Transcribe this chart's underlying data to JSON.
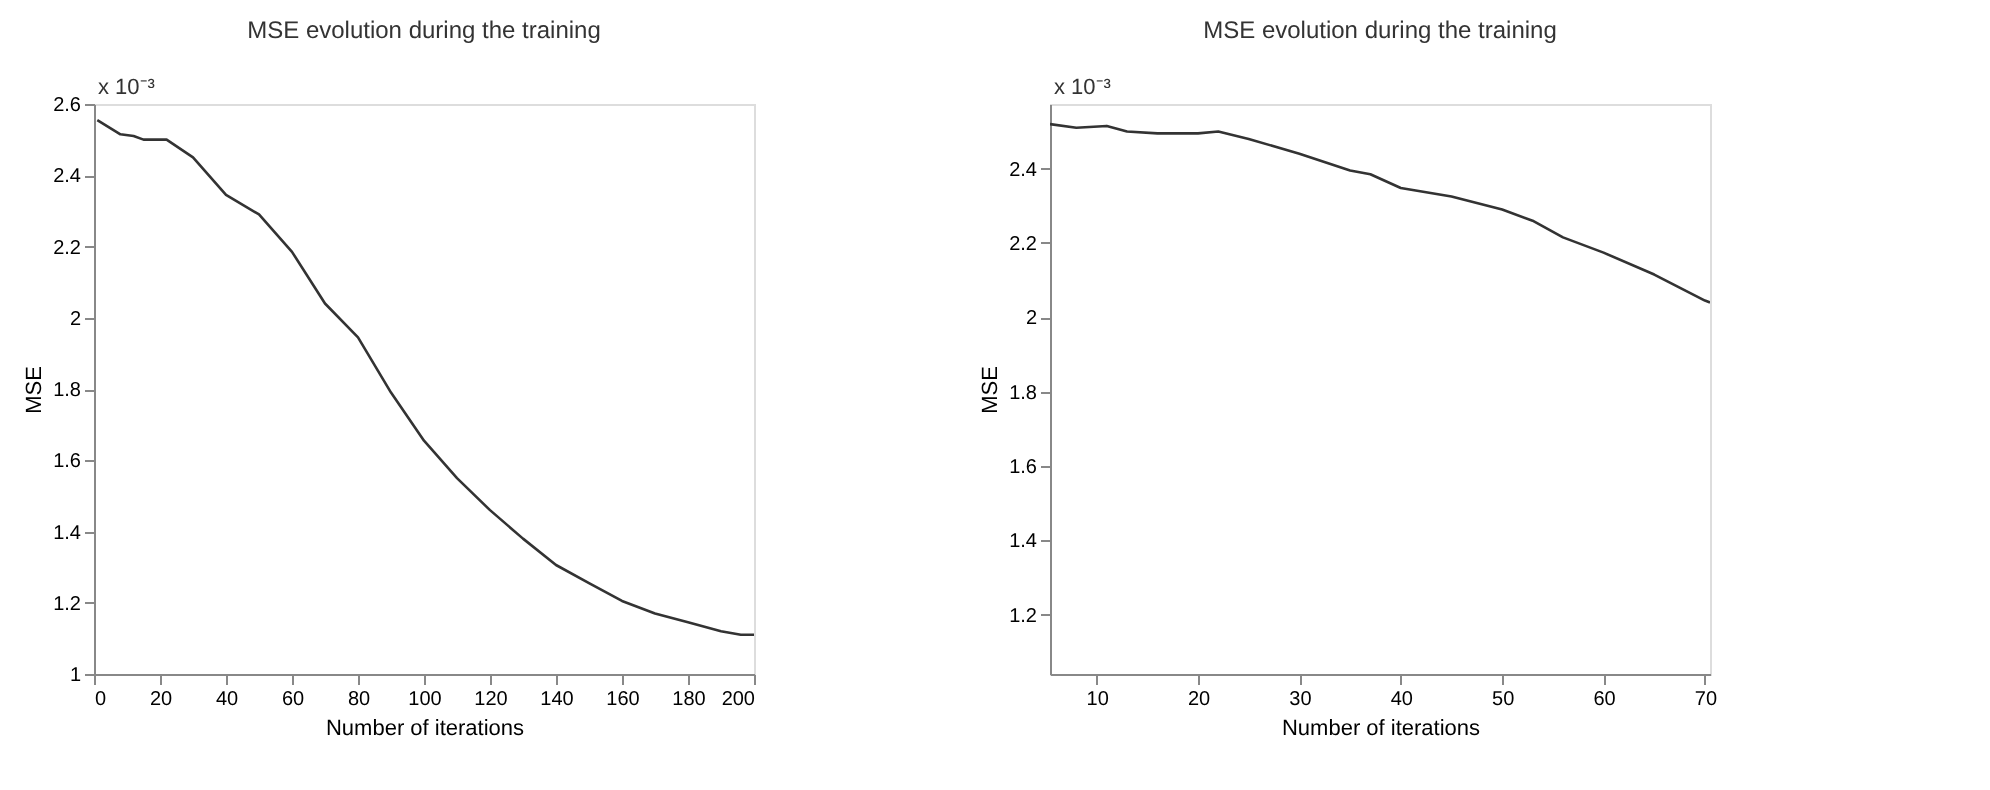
{
  "chart_data": [
    {
      "type": "line",
      "title": "MSE evolution during the training",
      "xlabel": "Number of iterations",
      "ylabel": "MSE",
      "annotations": [
        "x 10⁻³"
      ],
      "xlim": [
        0,
        200
      ],
      "ylim": [
        1,
        2.6
      ],
      "xticks": [
        0,
        20,
        40,
        60,
        80,
        100,
        120,
        140,
        160,
        180,
        200
      ],
      "yticks": [
        1,
        1.2,
        1.4,
        1.6,
        1.8,
        2,
        2.2,
        2.4,
        2.6
      ],
      "grid": false,
      "series": [
        {
          "color": "#333333",
          "x": [
            1,
            8,
            12,
            15,
            22,
            30,
            40,
            50,
            60,
            70,
            80,
            90,
            100,
            110,
            120,
            130,
            140,
            150,
            160,
            170,
            180,
            190,
            196,
            200
          ],
          "values": [
            2.555,
            2.515,
            2.51,
            2.5,
            2.5,
            2.45,
            2.345,
            2.29,
            2.185,
            2.04,
            1.945,
            1.79,
            1.655,
            1.55,
            1.46,
            1.38,
            1.306,
            1.255,
            1.205,
            1.17,
            1.145,
            1.12,
            1.11,
            1.11
          ]
        }
      ]
    },
    {
      "type": "line",
      "title": "MSE evolution during the training",
      "xlabel": "Number of iterations",
      "ylabel": "MSE",
      "annotations": [
        "x 10⁻³"
      ],
      "xlim": [
        5.4,
        70.5
      ],
      "ylim": [
        1.04,
        2.574
      ],
      "xticks": [
        10,
        20,
        30,
        40,
        50,
        60,
        70
      ],
      "yticks": [
        1.2,
        1.4,
        1.6,
        1.8,
        2,
        2.2,
        2.4
      ],
      "grid": false,
      "series": [
        {
          "color": "#333333",
          "x": [
            5.4,
            8,
            11,
            13,
            16,
            20,
            22,
            25,
            30,
            35,
            37,
            40,
            45,
            50,
            53,
            56,
            60,
            65,
            70,
            70.5
          ],
          "values": [
            2.52,
            2.51,
            2.515,
            2.5,
            2.495,
            2.495,
            2.5,
            2.48,
            2.44,
            2.395,
            2.385,
            2.348,
            2.325,
            2.29,
            2.26,
            2.215,
            2.174,
            2.115,
            2.045,
            2.04
          ]
        }
      ]
    }
  ]
}
